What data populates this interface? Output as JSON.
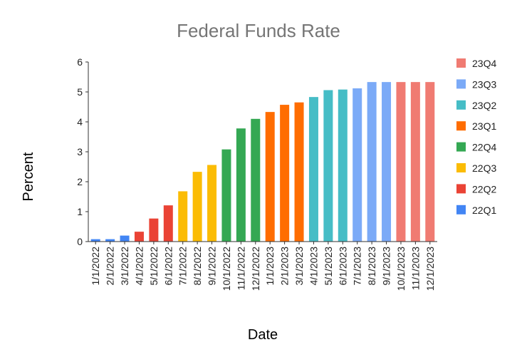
{
  "chart_data": {
    "type": "bar",
    "title": "Federal Funds Rate",
    "xlabel": "Date",
    "ylabel": "Percent",
    "ylim": [
      0,
      6
    ],
    "yticks": [
      "0",
      "1",
      "2",
      "3",
      "4",
      "5",
      "6"
    ],
    "legend_position": "right",
    "grid": false,
    "categories": [
      "1/1/2022",
      "2/1/2022",
      "3/1/2022",
      "4/1/2022",
      "5/1/2022",
      "6/1/2022",
      "7/1/2022",
      "8/1/2022",
      "9/1/2022",
      "10/1/2022",
      "11/1/2022",
      "12/1/2022",
      "1/1/2023",
      "2/1/2023",
      "3/1/2023",
      "4/1/2023",
      "5/1/2023",
      "6/1/2023",
      "7/1/2023",
      "8/1/2023",
      "9/1/2023",
      "10/1/2023",
      "11/1/2023",
      "12/1/2023"
    ],
    "values": [
      0.08,
      0.08,
      0.2,
      0.33,
      0.77,
      1.21,
      1.68,
      2.33,
      2.56,
      3.08,
      3.78,
      4.1,
      4.33,
      4.57,
      4.65,
      4.83,
      5.06,
      5.08,
      5.12,
      5.33,
      5.33,
      5.33,
      5.33,
      5.33
    ],
    "quarter_of_point": [
      "22Q1",
      "22Q1",
      "22Q1",
      "22Q2",
      "22Q2",
      "22Q2",
      "22Q3",
      "22Q3",
      "22Q3",
      "22Q4",
      "22Q4",
      "22Q4",
      "23Q1",
      "23Q1",
      "23Q1",
      "23Q2",
      "23Q2",
      "23Q2",
      "23Q3",
      "23Q3",
      "23Q3",
      "23Q4",
      "23Q4",
      "23Q4"
    ],
    "legend": [
      {
        "name": "23Q4",
        "color": "#f07b72"
      },
      {
        "name": "23Q3",
        "color": "#7baaf7"
      },
      {
        "name": "23Q2",
        "color": "#46bdc6"
      },
      {
        "name": "23Q1",
        "color": "#ff6d01"
      },
      {
        "name": "22Q4",
        "color": "#34a853"
      },
      {
        "name": "22Q3",
        "color": "#fbbc04"
      },
      {
        "name": "22Q2",
        "color": "#ea4335"
      },
      {
        "name": "22Q1",
        "color": "#4285f4"
      }
    ]
  }
}
